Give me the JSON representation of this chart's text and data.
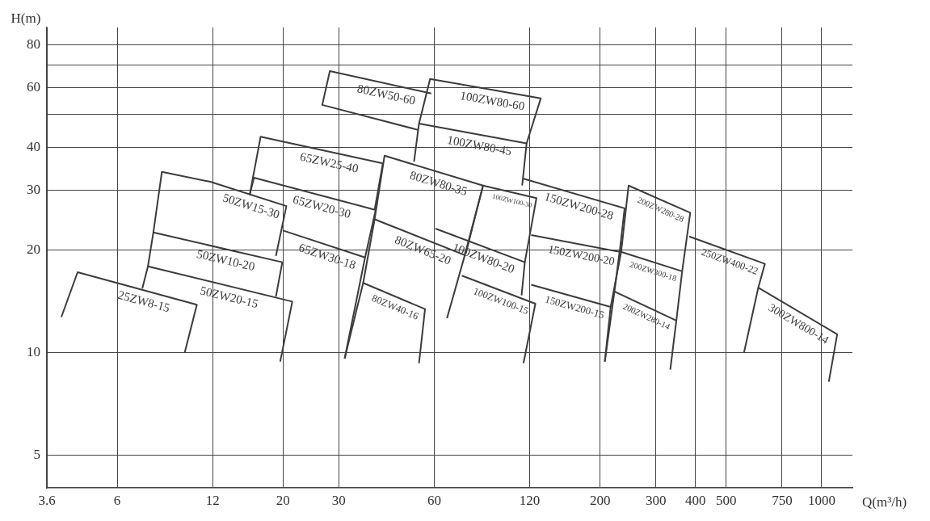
{
  "chart_data": {
    "type": "line",
    "xlabel": "Q(m³/h)",
    "ylabel": "H(m)",
    "xlim": [
      3.6,
      1250
    ],
    "ylim": [
      4,
      90
    ],
    "xticks": [
      3.6,
      6,
      12,
      20,
      30,
      60,
      120,
      200,
      300,
      400,
      500,
      750,
      1000
    ],
    "yticks": [
      5,
      10,
      20,
      30,
      40,
      {
        "value": 50,
        "label": null
      },
      60,
      {
        "value": 70,
        "label": null
      },
      80
    ],
    "grid": true,
    "legend": false,
    "log": "xy",
    "series": [
      {
        "name": "25ZW8-15",
        "color": "#3c3c3c",
        "x": [
          4.0,
          4.5,
          10.7,
          9.8
        ],
        "values": [
          12.7,
          17.2,
          13.8,
          10
        ]
      },
      {
        "name": "50ZW20-15",
        "color": "#3c3c3c",
        "x": [
          7.2,
          7.5,
          21.4,
          19.6
        ],
        "values": [
          15.4,
          17.9,
          14.1,
          9.4
        ]
      },
      {
        "name": "50ZW10-20",
        "color": "#3c3c3c",
        "x": [
          7.5,
          7.8,
          19.9,
          19.0
        ],
        "values": [
          17.9,
          22.5,
          18.4,
          14.6
        ]
      },
      {
        "name": "50ZW15-30",
        "color": "#3c3c3c",
        "x": [
          7.8,
          8.3,
          11.8,
          20.5,
          19.0
        ],
        "values": [
          22.5,
          33.9,
          31.7,
          26.9,
          19.2
        ]
      },
      {
        "name": "65ZW25-40",
        "color": "#3c3c3c",
        "x": [
          15.7,
          17.0,
          41.3,
          38.9
        ],
        "values": [
          29.0,
          43.0,
          35.9,
          26.2
        ]
      },
      {
        "name": "65ZW20-30",
        "color": "#3c3c3c",
        "x": [
          15.7,
          16.2,
          39.2,
          36.3
        ],
        "values": [
          29.0,
          32.6,
          26.2,
          19.0
        ]
      },
      {
        "name": "65ZW30-18",
        "color": "#3c3c3c",
        "x": [
          20,
          36.3,
          31.3
        ],
        "values": [
          22.8,
          19.0,
          9.6
        ]
      },
      {
        "name": "80ZW80-35",
        "color": "#3c3c3c",
        "x": [
          38.9,
          41.8,
          85.5,
          74.9
        ],
        "values": [
          24.6,
          37.8,
          30.9,
          19.3
        ]
      },
      {
        "name": "80ZW65-20",
        "color": "#3c3c3c",
        "x": [
          35.8,
          38.9,
          74.9,
          65.8
        ],
        "values": [
          16.0,
          24.6,
          19.3,
          12.6
        ]
      },
      {
        "name": "80ZW40-16",
        "color": "#3c3c3c",
        "x": [
          31.3,
          35.8,
          56.1,
          53.7
        ],
        "values": [
          9.6,
          16.0,
          13.4,
          9.3
        ]
      },
      {
        "name": "80ZW50-60",
        "color": "#3c3c3c",
        "x": [
          53.4,
          26.6,
          28.1,
          58.7
        ],
        "values": [
          45.0,
          53.3,
          67.0,
          57.6
        ]
      },
      {
        "name": "100ZW80-60",
        "color": "#3c3c3c",
        "x": [
          53.7,
          58.2,
          130,
          117.3
        ],
        "values": [
          47.0,
          63.5,
          55.7,
          41.1
        ]
      },
      {
        "name": "100ZW80-45",
        "color": "#3c3c3c",
        "x": [
          51.8,
          53.7,
          117.3,
          113.6
        ],
        "values": [
          36.3,
          47.0,
          41.1,
          30.9
        ]
      },
      {
        "name": "100ZW100-30",
        "color": "#3c3c3c",
        "x": [
          75.4,
          85.5,
          126,
          115.8
        ],
        "values": [
          19.5,
          30.9,
          28.4,
          18.4
        ]
      },
      {
        "name": "100ZW80-20",
        "color": "#3c3c3c",
        "x": [
          60.5,
          115.8,
          113.1
        ],
        "values": [
          23.1,
          18.4,
          14.7
        ]
      },
      {
        "name": "100ZW100-15",
        "color": "#3c3c3c",
        "x": [
          73.3,
          125,
          114.7
        ],
        "values": [
          16.8,
          13.9,
          9.3
        ]
      },
      {
        "name": "150ZW200-28",
        "color": "#3c3c3c",
        "x": [
          114.2,
          239,
          230.5
        ],
        "values": [
          32.4,
          26.5,
          19.7
        ]
      },
      {
        "name": "150ZW200-20",
        "color": "#3c3c3c",
        "x": [
          121.3,
          233,
          216
        ],
        "values": [
          22.1,
          19.7,
          13.6
        ]
      },
      {
        "name": "150ZW200-15",
        "color": "#3c3c3c",
        "x": [
          121.3,
          216,
          207
        ],
        "values": [
          15.8,
          13.6,
          9.4
        ]
      },
      {
        "name": "200ZW280-28",
        "color": "#3c3c3c",
        "x": [
          233,
          246,
          385,
          363
        ],
        "values": [
          19.7,
          30.9,
          25.7,
          17.3
        ]
      },
      {
        "name": "200ZW300-18",
        "color": "#3c3c3c",
        "x": [
          222,
          230.5,
          363,
          348
        ],
        "values": [
          15.1,
          19.8,
          17.3,
          12.4
        ]
      },
      {
        "name": "200ZW280-14",
        "color": "#3c3c3c",
        "x": [
          207,
          222,
          348,
          333
        ],
        "values": [
          9.4,
          15.1,
          12.4,
          8.9
        ]
      },
      {
        "name": "250ZW400-22",
        "color": "#3c3c3c",
        "x": [
          382,
          662,
          631
        ],
        "values": [
          21.9,
          18.2,
          15.5
        ]
      },
      {
        "name": "300ZW800-14",
        "color": "#3c3c3c",
        "x": [
          569,
          631,
          1119,
          1053
        ],
        "values": [
          10,
          15.5,
          11.3,
          8.2
        ]
      }
    ]
  }
}
